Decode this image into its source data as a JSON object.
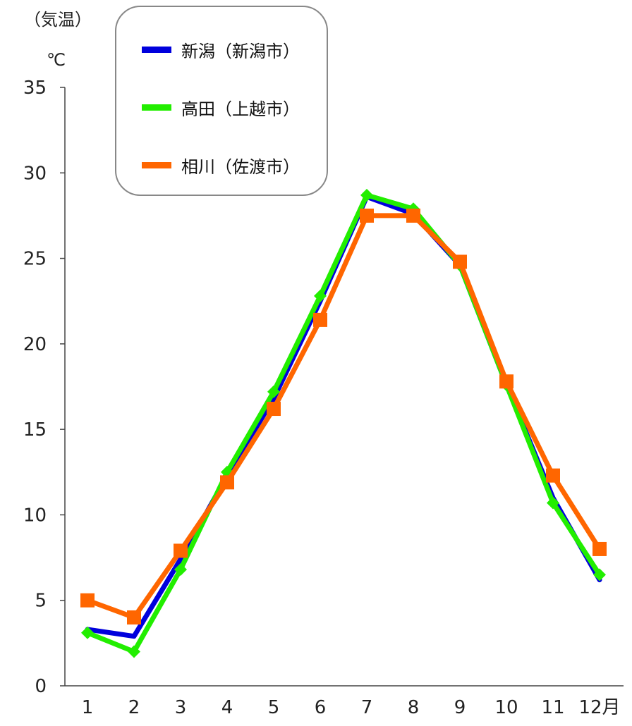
{
  "chart_data": {
    "type": "line",
    "y_unit_label": "（気温）",
    "y_unit_symbol": "℃",
    "x_unit_suffix": "月",
    "categories": [
      "1",
      "2",
      "3",
      "4",
      "5",
      "6",
      "7",
      "8",
      "9",
      "10",
      "11",
      "12"
    ],
    "ylim": [
      0,
      35
    ],
    "yticks": [
      0,
      5,
      10,
      15,
      20,
      25,
      30,
      35
    ],
    "grid": false,
    "legend_position": "top-left",
    "series": [
      {
        "name": "新潟（新潟市）",
        "color": "#0000dd",
        "marker": "none",
        "values": [
          3.3,
          2.9,
          7.4,
          12.3,
          16.8,
          22.5,
          28.6,
          27.6,
          24.6,
          17.6,
          11.0,
          6.2
        ]
      },
      {
        "name": "高田（上越市）",
        "color": "#22ee00",
        "marker": "diamond",
        "values": [
          3.1,
          2.0,
          6.8,
          12.5,
          17.2,
          22.8,
          28.7,
          27.9,
          24.6,
          17.6,
          10.7,
          6.5
        ]
      },
      {
        "name": "相川（佐渡市）",
        "color": "#ff6600",
        "marker": "square",
        "values": [
          5.0,
          4.0,
          7.9,
          11.9,
          16.2,
          21.4,
          27.5,
          27.5,
          24.8,
          17.8,
          12.3,
          8.0
        ]
      }
    ]
  }
}
